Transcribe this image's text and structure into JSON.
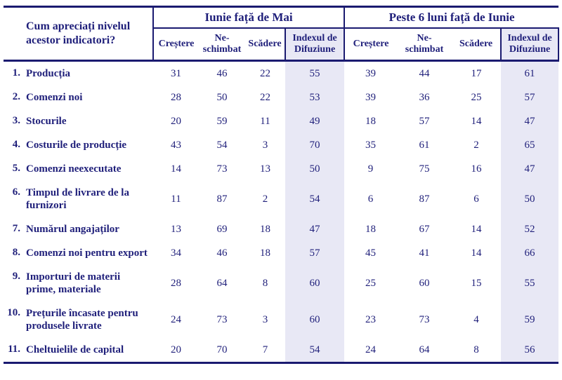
{
  "table": {
    "question": "Cum apreciați nivelul acestor indicatori?",
    "groups": [
      {
        "title": "Iunie față de Mai"
      },
      {
        "title": "Peste 6 luni față de Iunie"
      }
    ],
    "subheaders": {
      "increase": "Creștere",
      "unchanged": "Ne-schimbat",
      "decrease": "Scădere",
      "index": "Indexul de Difuziune"
    },
    "colors": {
      "text_navy": "#1f1f7a",
      "border_navy": "#1a1a70",
      "index_column_background": "#e8e8f5"
    },
    "rows": [
      {
        "no": "1.",
        "label": "Producția",
        "values": [
          "31",
          "46",
          "22",
          "55",
          "39",
          "44",
          "17",
          "61"
        ]
      },
      {
        "no": "2.",
        "label": "Comenzi noi",
        "values": [
          "28",
          "50",
          "22",
          "53",
          "39",
          "36",
          "25",
          "57"
        ]
      },
      {
        "no": "3.",
        "label": "Stocurile",
        "values": [
          "20",
          "59",
          "11",
          "49",
          "18",
          "57",
          "14",
          "47"
        ]
      },
      {
        "no": "4.",
        "label": "Costurile de producție",
        "values": [
          "43",
          "54",
          "3",
          "70",
          "35",
          "61",
          "2",
          "65"
        ]
      },
      {
        "no": "5.",
        "label": "Comenzi neexecutate",
        "values": [
          "14",
          "73",
          "13",
          "50",
          "9",
          "75",
          "16",
          "47"
        ]
      },
      {
        "no": "6.",
        "label": "Timpul de livrare de la furnizori",
        "values": [
          "11",
          "87",
          "2",
          "54",
          "6",
          "87",
          "6",
          "50"
        ]
      },
      {
        "no": "7.",
        "label": "Numărul angajaților",
        "values": [
          "13",
          "69",
          "18",
          "47",
          "18",
          "67",
          "14",
          "52"
        ]
      },
      {
        "no": "8.",
        "label": "Comenzi noi pentru export",
        "values": [
          "34",
          "46",
          "18",
          "57",
          "45",
          "41",
          "14",
          "66"
        ]
      },
      {
        "no": "9.",
        "label": "Importuri de materii prime, materiale",
        "values": [
          "28",
          "64",
          "8",
          "60",
          "25",
          "60",
          "15",
          "55"
        ]
      },
      {
        "no": "10.",
        "label": "Prețurile încasate pentru produsele livrate",
        "values": [
          "24",
          "73",
          "3",
          "60",
          "23",
          "73",
          "4",
          "59"
        ]
      },
      {
        "no": "11.",
        "label": "Cheltuielile de capital",
        "values": [
          "20",
          "70",
          "7",
          "54",
          "24",
          "64",
          "8",
          "56"
        ]
      }
    ]
  }
}
